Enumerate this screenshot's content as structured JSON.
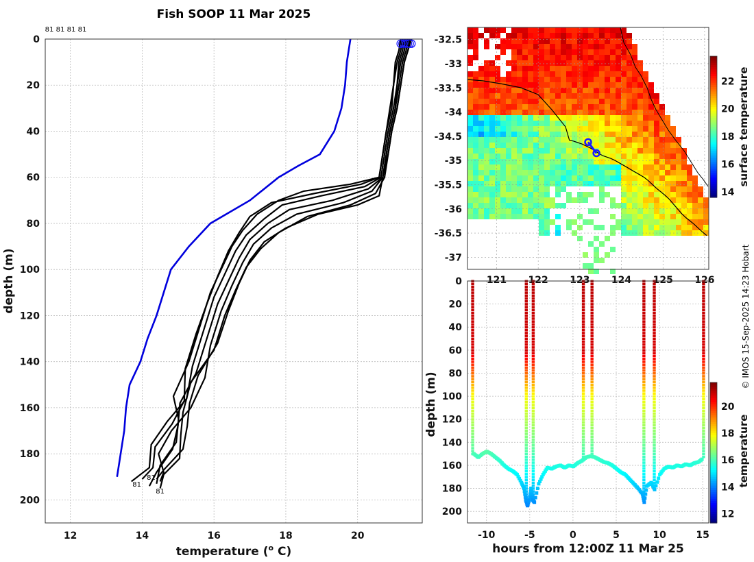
{
  "chart_data": [
    {
      "type": "line",
      "title": "Fish SOOP 11 Mar 2025",
      "xlabel": "temperature (",
      "xlabel_sup": "o",
      "xlabel_tail": " C)",
      "ylabel": "depth (m)",
      "xlim": [
        11.3,
        21.8
      ],
      "ylim": [
        210,
        0
      ],
      "xticks": [
        "12",
        "14",
        "16",
        "18",
        "20"
      ],
      "xtick_values": [
        12,
        14,
        16,
        18,
        20
      ],
      "yticks": [
        "0",
        "20",
        "40",
        "60",
        "80",
        "100",
        "120",
        "140",
        "160",
        "180",
        "200"
      ],
      "ytick_values": [
        0,
        20,
        40,
        60,
        80,
        100,
        120,
        140,
        160,
        180,
        200
      ],
      "top_labels": [
        "81",
        "81",
        "81",
        "81"
      ],
      "end_labels": [
        "81",
        "81",
        "81"
      ],
      "climatology": {
        "name": "climatology",
        "color": "#0000dd",
        "temperature": [
          19.8,
          19.75,
          19.7,
          19.65,
          19.55,
          19.35,
          18.95,
          18.35,
          17.8,
          17.0,
          15.9,
          15.3,
          14.8,
          14.6,
          14.4,
          14.15,
          13.95,
          13.65,
          13.55,
          13.5,
          13.4,
          13.3
        ],
        "depth": [
          0,
          5,
          10,
          20,
          30,
          40,
          50,
          55,
          60,
          70,
          80,
          90,
          100,
          110,
          120,
          130,
          140,
          150,
          160,
          170,
          180,
          190
        ]
      },
      "profiles": [
        {
          "temperature": [
            21.25,
            21.2,
            21.1,
            21.0,
            20.95,
            20.8,
            20.7,
            20.6,
            19.8,
            18.5,
            17.8,
            17.2,
            16.8,
            16.5,
            16.2,
            15.9,
            15.6,
            15.3,
            15.0,
            14.9,
            14.7,
            14.5,
            14.4
          ],
          "depth": [
            0,
            5,
            10,
            20,
            30,
            40,
            50,
            60,
            63,
            66,
            70,
            76,
            83,
            90,
            100,
            110,
            125,
            140,
            155,
            165,
            175,
            185,
            193
          ]
        },
        {
          "temperature": [
            21.3,
            21.25,
            21.15,
            21.1,
            21.0,
            20.85,
            20.75,
            20.65,
            20.2,
            19.0,
            17.9,
            17.4,
            16.9,
            16.6,
            16.3,
            16.0,
            15.7,
            15.4,
            15.1,
            14.8,
            14.5,
            14.2,
            13.7
          ],
          "depth": [
            0,
            5,
            10,
            20,
            30,
            40,
            50,
            60,
            64,
            68,
            72,
            78,
            85,
            92,
            102,
            112,
            127,
            142,
            156,
            166,
            176,
            186,
            192
          ]
        },
        {
          "temperature": [
            21.35,
            21.3,
            21.2,
            21.1,
            21.05,
            20.9,
            20.8,
            20.7,
            20.3,
            19.3,
            18.1,
            17.5,
            17.0,
            16.7,
            16.4,
            16.1,
            15.8,
            15.5,
            15.2,
            14.9,
            14.6,
            14.4,
            14.2
          ],
          "depth": [
            0,
            5,
            10,
            20,
            30,
            40,
            50,
            60,
            65,
            70,
            74,
            80,
            87,
            95,
            105,
            115,
            130,
            145,
            158,
            168,
            178,
            188,
            194
          ]
        },
        {
          "temperature": [
            21.4,
            21.35,
            21.25,
            21.15,
            21.05,
            20.9,
            20.8,
            20.7,
            20.4,
            19.6,
            18.3,
            17.6,
            17.1,
            16.8,
            16.5,
            16.2,
            15.9,
            15.5,
            15.2,
            14.9,
            14.7,
            14.6,
            14.5
          ],
          "depth": [
            0,
            5,
            10,
            20,
            30,
            40,
            50,
            60,
            66,
            71,
            76,
            82,
            89,
            97,
            107,
            118,
            133,
            147,
            160,
            170,
            180,
            188,
            192
          ]
        },
        {
          "temperature": [
            21.5,
            21.4,
            21.3,
            21.2,
            21.1,
            20.95,
            20.85,
            20.75,
            20.5,
            19.8,
            18.6,
            17.8,
            17.3,
            16.9,
            16.6,
            16.3,
            16.0,
            15.6,
            15.3,
            15.0,
            14.8,
            14.6,
            14.5
          ],
          "depth": [
            0,
            5,
            10,
            20,
            30,
            40,
            50,
            60,
            67,
            72,
            77,
            84,
            91,
            99,
            109,
            120,
            135,
            149,
            162,
            172,
            182,
            189,
            195
          ]
        },
        {
          "temperature": [
            21.2,
            21.15,
            21.05,
            21.0,
            20.9,
            20.8,
            20.7,
            20.6,
            20.1,
            18.8,
            17.6,
            17.0,
            16.7,
            16.4,
            16.1,
            15.8,
            15.5,
            15.2,
            15.0,
            14.9,
            14.6,
            14.3,
            14.0
          ],
          "depth": [
            0,
            5,
            10,
            20,
            30,
            40,
            50,
            60,
            63,
            67,
            71,
            77,
            84,
            92,
            103,
            115,
            128,
            143,
            157,
            167,
            177,
            186,
            191
          ]
        },
        {
          "temperature": [
            21.45,
            21.4,
            21.3,
            21.2,
            21.1,
            20.95,
            20.85,
            20.7,
            20.6,
            20.0,
            18.9,
            18.0,
            17.4,
            17.0,
            16.7,
            16.4,
            16.1,
            15.8,
            15.5,
            15.2,
            14.9,
            14.6,
            14.4
          ],
          "depth": [
            0,
            5,
            10,
            20,
            30,
            40,
            50,
            60,
            68,
            72,
            76,
            82,
            88,
            96,
            106,
            118,
            132,
            146,
            158,
            168,
            178,
            187,
            191
          ]
        }
      ]
    },
    {
      "type": "heatmap",
      "name": "sst-map",
      "colorbar_label": "surface temperature",
      "colorbar_ticks": [
        "14",
        "16",
        "18",
        "20",
        "22"
      ],
      "colorbar_tick_values": [
        14,
        16,
        18,
        20,
        22
      ],
      "colorbar_range": [
        13.6,
        23.8
      ],
      "xlabel": "",
      "xticks": [
        "121",
        "122",
        "123",
        "124",
        "125",
        "126"
      ],
      "xtick_values": [
        121,
        122,
        123,
        124,
        125,
        126
      ],
      "yticks": [
        "-32.5",
        "-33",
        "-33.5",
        "-34",
        "-34.5",
        "-35",
        "-35.5",
        "-36",
        "-36.5",
        "-37"
      ],
      "ytick_values": [
        -32.5,
        -33,
        -33.5,
        -34,
        -34.5,
        -35,
        -35.5,
        -36,
        -36.5,
        -37
      ],
      "lon_range": [
        120.3,
        126.1
      ],
      "lat_range": [
        -37.25,
        -32.25
      ],
      "track": {
        "lon": [
          122.75,
          122.85,
          122.95,
          123.05,
          123.15,
          123.25,
          123.35,
          123.45,
          123.55,
          123.65,
          123.75,
          123.85,
          123.95,
          124.05,
          124.15,
          124.25,
          124.35,
          124.45,
          124.55,
          124.65,
          124.75,
          124.85,
          124.95,
          125.05,
          125.15,
          125.25,
          125.35,
          125.45,
          125.55,
          125.65,
          125.75,
          125.85,
          125.95,
          126.05
        ],
        "lat": [
          -34.58,
          -34.6,
          -34.63,
          -34.66,
          -34.7,
          -34.74,
          -34.79,
          -34.85,
          -34.9,
          -34.93,
          -34.96,
          -35.0,
          -35.05,
          -35.1,
          -35.15,
          -35.2,
          -35.25,
          -35.3,
          -35.35,
          -35.42,
          -35.5,
          -35.58,
          -35.65,
          -35.72,
          -35.8,
          -35.9,
          -36.0,
          -36.1,
          -36.18,
          -36.25,
          -36.32,
          -36.4,
          -36.48,
          -36.55
        ]
      },
      "ship_positions": {
        "lon": [
          123.2,
          123.4
        ],
        "lat": [
          -34.62,
          -34.85
        ]
      }
    },
    {
      "type": "scatter",
      "name": "depth-time-section",
      "xlabel": "hours from 12:00Z 11 Mar 25",
      "ylabel": "depth (m)",
      "colorbar_label": "temperature",
      "colorbar_ticks": [
        "12",
        "14",
        "16",
        "18",
        "20"
      ],
      "colorbar_tick_values": [
        12,
        14,
        16,
        18,
        20
      ],
      "colorbar_range": [
        11.3,
        21.8
      ],
      "xticks": [
        "-10",
        "-5",
        "0",
        "5",
        "10",
        "15"
      ],
      "xtick_values": [
        -10,
        -5,
        0,
        5,
        10,
        15
      ],
      "yticks": [
        "0",
        "20",
        "40",
        "60",
        "80",
        "100",
        "120",
        "140",
        "160",
        "180",
        "200"
      ],
      "ytick_values": [
        0,
        20,
        40,
        60,
        80,
        100,
        120,
        140,
        160,
        180,
        200
      ],
      "xlim": [
        -12.2,
        15.7
      ],
      "ylim": [
        210,
        0
      ],
      "casts_hours": [
        -11.6,
        -5.4,
        -4.6,
        1.2,
        2.2,
        8.2,
        9.4,
        15.1
      ],
      "bottom_track": {
        "hours": [
          -11.5,
          -11.0,
          -10.5,
          -10.0,
          -9.5,
          -9.0,
          -8.5,
          -8.0,
          -7.5,
          -7.0,
          -6.5,
          -6.0,
          -5.7,
          -5.5,
          -5.3,
          -5.1,
          -4.9,
          -4.7,
          -4.5,
          -4.0,
          -3.5,
          -3.0,
          -2.5,
          -2.0,
          -1.5,
          -1.0,
          -0.5,
          0.0,
          0.5,
          1.0,
          1.5,
          2.0,
          2.5,
          3.0,
          3.5,
          4.0,
          4.5,
          5.0,
          5.5,
          6.0,
          6.5,
          7.0,
          7.5,
          8.0,
          8.2,
          8.5,
          9.0,
          9.4,
          10.0,
          10.5,
          11.0,
          11.5,
          12.0,
          12.5,
          13.0,
          13.5,
          14.0,
          14.5,
          15.0
        ],
        "depth": [
          150,
          153,
          150,
          148,
          150,
          153,
          156,
          160,
          163,
          165,
          168,
          175,
          180,
          190,
          195,
          190,
          180,
          190,
          192,
          176,
          168,
          162,
          163,
          161,
          160,
          162,
          160,
          161,
          158,
          156,
          153,
          152,
          153,
          155,
          157,
          158,
          160,
          163,
          166,
          168,
          172,
          176,
          180,
          185,
          192,
          178,
          175,
          181,
          168,
          163,
          161,
          162,
          160,
          161,
          159,
          160,
          158,
          157,
          154
        ]
      }
    }
  ],
  "watermark": "© IMOS 15-Sep-2025 14:23 Hobart"
}
